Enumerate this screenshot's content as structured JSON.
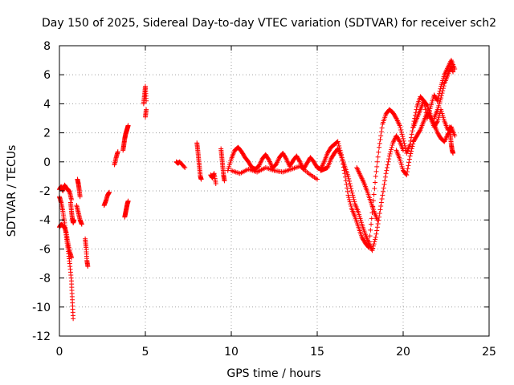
{
  "chart_data": {
    "type": "scatter",
    "title": "Day 150 of 2025, Sidereal Day-to-day VTEC variation (SDTVAR) for receiver sch2",
    "xlabel": "GPS time / hours",
    "ylabel": "SDTVAR / TECUs",
    "xlim": [
      0,
      25
    ],
    "ylim": [
      -12,
      8
    ],
    "xticks": [
      0,
      5,
      10,
      15,
      20,
      25
    ],
    "yticks": [
      -12,
      -10,
      -8,
      -6,
      -4,
      -2,
      0,
      2,
      4,
      6,
      8
    ],
    "xtick_labels": [
      "0",
      "5",
      "10",
      "15",
      "20",
      "25"
    ],
    "ytick_labels": [
      "-12",
      "-10",
      "-8",
      "-6",
      "-4",
      "-2",
      "0",
      "2",
      "4",
      "6",
      "8"
    ],
    "grid": true,
    "marker": "+",
    "series": [
      {
        "name": "sch2",
        "color": "#ff0000",
        "segments": [
          {
            "x": [
              0.0,
              0.1,
              0.2,
              0.3,
              0.4,
              0.5,
              0.6,
              0.7
            ],
            "y": [
              -1.9,
              -1.7,
              -2.0,
              -1.6,
              -1.8,
              -1.9,
              -2.1,
              -2.6
            ]
          },
          {
            "x": [
              0.0,
              0.1,
              0.2,
              0.3,
              0.4,
              0.5,
              0.6,
              0.7,
              0.75,
              0.8
            ],
            "y": [
              -2.4,
              -2.8,
              -3.4,
              -4.2,
              -5.2,
              -6.0,
              -7.0,
              -8.2,
              -9.5,
              -10.8
            ]
          },
          {
            "x": [
              0.0,
              0.1,
              0.2,
              0.3,
              0.4,
              0.5,
              0.6,
              0.7
            ],
            "y": [
              -4.5,
              -4.3,
              -4.4,
              -4.5,
              -4.9,
              -5.6,
              -6.2,
              -6.6
            ]
          },
          {
            "x": [
              0.65,
              0.7,
              0.75,
              0.8,
              0.85
            ],
            "y": [
              -2.8,
              -3.4,
              -3.9,
              -4.2,
              -4.0
            ]
          },
          {
            "x": [
              1.05,
              1.1,
              1.15,
              1.2
            ],
            "y": [
              -1.2,
              -1.5,
              -1.9,
              -2.4
            ]
          },
          {
            "x": [
              1.0,
              1.1,
              1.2,
              1.3
            ],
            "y": [
              -3.0,
              -3.5,
              -4.0,
              -4.3
            ]
          },
          {
            "x": [
              1.5,
              1.55,
              1.6,
              1.65
            ],
            "y": [
              -5.3,
              -5.9,
              -6.8,
              -7.2
            ]
          },
          {
            "x": [
              2.6,
              2.7,
              2.8,
              2.9
            ],
            "y": [
              -3.0,
              -2.7,
              -2.3,
              -2.1
            ]
          },
          {
            "x": [
              3.2,
              3.3,
              3.4
            ],
            "y": [
              -0.2,
              0.3,
              0.7
            ]
          },
          {
            "x": [
              3.7,
              3.75,
              3.8,
              3.85,
              3.9,
              3.95,
              4.0
            ],
            "y": [
              0.8,
              1.2,
              1.6,
              1.9,
              2.1,
              2.3,
              2.5
            ]
          },
          {
            "x": [
              3.8,
              3.85,
              3.9,
              3.95,
              4.0
            ],
            "y": [
              -3.8,
              -3.5,
              -3.2,
              -2.9,
              -2.7
            ]
          },
          {
            "x": [
              4.9,
              4.95,
              5.0,
              5.05
            ],
            "y": [
              4.0,
              4.6,
              5.2,
              4.2
            ]
          },
          {
            "x": [
              5.0,
              5.05
            ],
            "y": [
              3.1,
              3.6
            ]
          },
          {
            "x": [
              6.8,
              6.9,
              7.0,
              7.3
            ],
            "y": [
              0.0,
              -0.1,
              0.0,
              -0.4
            ]
          },
          {
            "x": [
              8.0,
              8.05,
              8.1,
              8.15,
              8.2,
              8.25
            ],
            "y": [
              1.3,
              0.8,
              0.2,
              -0.4,
              -1.0,
              -1.2
            ]
          },
          {
            "x": [
              8.8,
              8.9,
              9.0,
              9.1
            ],
            "y": [
              -0.9,
              -1.1,
              -0.8,
              -1.5
            ]
          },
          {
            "x": [
              9.4,
              9.45,
              9.5,
              9.55,
              9.6
            ],
            "y": [
              0.9,
              0.3,
              -0.3,
              -0.9,
              -1.3
            ]
          },
          {
            "x": [
              9.8,
              10.0,
              10.2,
              10.4,
              10.6,
              10.8,
              11.0,
              11.2,
              11.4,
              11.6,
              11.8,
              12.0,
              12.2,
              12.4,
              12.6,
              12.8,
              13.0,
              13.2,
              13.4,
              13.6,
              13.8,
              14.0,
              14.2,
              14.4,
              14.6,
              14.8,
              15.0,
              15.2,
              15.4,
              15.6,
              15.8,
              16.0,
              16.2,
              16.4,
              16.6,
              16.8,
              17.0,
              17.2,
              17.4,
              17.6,
              17.8,
              18.0,
              18.2,
              18.4,
              18.6,
              18.8,
              19.0,
              19.2,
              19.4,
              19.6,
              19.8,
              20.0,
              20.2,
              20.4,
              20.6,
              20.8,
              21.0,
              21.2,
              21.4,
              21.6,
              21.8,
              22.0,
              22.2,
              22.4,
              22.6,
              22.8,
              23.0
            ],
            "y": [
              -0.6,
              0.2,
              0.8,
              1.0,
              0.7,
              0.3,
              0.0,
              -0.4,
              -0.5,
              -0.3,
              0.2,
              0.5,
              0.1,
              -0.4,
              -0.2,
              0.3,
              0.6,
              0.2,
              -0.3,
              0.1,
              0.4,
              0.0,
              -0.5,
              -0.1,
              0.3,
              0.0,
              -0.4,
              -0.5,
              0.0,
              0.6,
              1.0,
              1.2,
              1.4,
              0.5,
              -0.8,
              -2.3,
              -3.2,
              -3.8,
              -4.5,
              -5.2,
              -5.6,
              -5.9,
              -3.5,
              -1.0,
              1.0,
              2.6,
              3.3,
              3.6,
              3.4,
              3.0,
              2.5,
              1.6,
              0.6,
              1.2,
              2.6,
              3.8,
              4.5,
              4.2,
              3.0,
              3.8,
              4.6,
              4.2,
              5.2,
              6.0,
              6.5,
              7.0,
              6.4
            ]
          },
          {
            "x": [
              10.0,
              10.5,
              11.0,
              11.5,
              12.0,
              12.5,
              13.0,
              13.5,
              14.0,
              14.5,
              15.0
            ],
            "y": [
              -0.6,
              -0.8,
              -0.5,
              -0.7,
              -0.4,
              -0.6,
              -0.7,
              -0.5,
              -0.3,
              -0.8,
              -1.2
            ]
          },
          {
            "x": [
              15.2,
              15.4,
              15.6,
              15.8,
              16.0,
              16.2,
              16.4,
              16.6,
              16.8,
              17.0,
              17.2,
              17.4,
              17.6,
              17.8,
              18.0,
              18.2,
              18.4,
              18.6,
              18.8,
              19.0,
              19.2,
              19.4,
              19.6,
              19.8,
              20.0
            ],
            "y": [
              -0.6,
              -0.5,
              -0.4,
              0.2,
              0.6,
              0.9,
              0.4,
              -0.3,
              -1.0,
              -2.0,
              -2.9,
              -3.5,
              -4.3,
              -5.0,
              -5.6,
              -6.1,
              -5.2,
              -3.8,
              -2.3,
              -0.8,
              0.4,
              1.3,
              1.8,
              1.4,
              0.8
            ]
          },
          {
            "x": [
              17.3,
              17.5,
              17.7,
              17.9,
              18.1,
              18.3,
              18.5
            ],
            "y": [
              -0.4,
              -0.9,
              -1.4,
              -2.0,
              -2.7,
              -3.4,
              -4.0
            ]
          },
          {
            "x": [
              19.6,
              19.8,
              20.0,
              20.2,
              20.4,
              20.6,
              20.8,
              21.0,
              21.2,
              21.4,
              21.6,
              21.8,
              22.0,
              22.2,
              22.4,
              22.6,
              22.8,
              23.0
            ],
            "y": [
              0.8,
              0.2,
              -0.6,
              -0.9,
              0.4,
              1.4,
              1.8,
              2.2,
              2.8,
              3.4,
              3.0,
              2.4,
              2.8,
              3.6,
              2.8,
              2.2,
              2.4,
              1.8
            ]
          },
          {
            "x": [
              20.6,
              20.8,
              21.0,
              21.2,
              21.4,
              21.6,
              21.8,
              22.0,
              22.2,
              22.4,
              22.6,
              22.8
            ],
            "y": [
              2.4,
              3.0,
              3.6,
              4.2,
              3.9,
              3.2,
              2.6,
              2.0,
              1.6,
              1.4,
              1.9,
              2.2
            ]
          },
          {
            "x": [
              21.8,
              22.0,
              22.2,
              22.4,
              22.6,
              22.8,
              22.9
            ],
            "y": [
              3.0,
              3.6,
              4.4,
              5.4,
              6.0,
              6.6,
              6.2
            ]
          },
          {
            "x": [
              22.7,
              22.75,
              22.8,
              22.85,
              22.9
            ],
            "y": [
              2.4,
              1.8,
              1.2,
              0.8,
              0.6
            ]
          }
        ]
      }
    ]
  }
}
